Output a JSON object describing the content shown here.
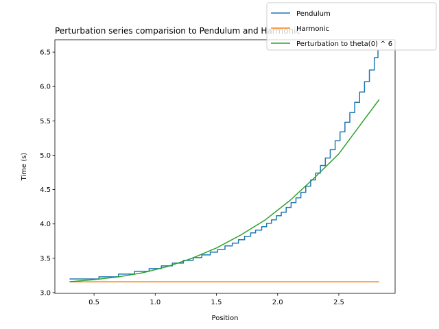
{
  "chart_data": {
    "type": "line",
    "title": "Perturbation series comparision to Pendulum and Harmonic",
    "xlabel": "Position",
    "ylabel": "Time (s)",
    "xlim": [
      0.18,
      2.96
    ],
    "ylim": [
      2.99,
      6.68
    ],
    "xticks": [
      0.5,
      1.0,
      1.5,
      2.0,
      2.5
    ],
    "xtick_labels": [
      "0.5",
      "1.0",
      "1.5",
      "2.0",
      "2.5"
    ],
    "yticks": [
      3.0,
      3.5,
      4.0,
      4.5,
      5.0,
      5.5,
      6.0,
      6.5
    ],
    "ytick_labels": [
      "3.0",
      "3.5",
      "4.0",
      "4.5",
      "5.0",
      "5.5",
      "6.0",
      "6.5"
    ],
    "grid": false,
    "legend_position": "top-right",
    "series": [
      {
        "name": "Pendulum",
        "color": "#1f77b4",
        "style": "step",
        "x": [
          0.3,
          0.54,
          0.7,
          0.83,
          0.95,
          1.05,
          1.14,
          1.23,
          1.31,
          1.38,
          1.45,
          1.51,
          1.57,
          1.63,
          1.68,
          1.73,
          1.78,
          1.82,
          1.87,
          1.91,
          1.95,
          1.99,
          2.03,
          2.07,
          2.11,
          2.15,
          2.19,
          2.23,
          2.27,
          2.31,
          2.35,
          2.39,
          2.43,
          2.47,
          2.51,
          2.55,
          2.59,
          2.63,
          2.67,
          2.71,
          2.75,
          2.79,
          2.82
        ],
        "y": [
          3.2,
          3.23,
          3.27,
          3.31,
          3.35,
          3.39,
          3.43,
          3.47,
          3.51,
          3.55,
          3.59,
          3.63,
          3.68,
          3.72,
          3.77,
          3.82,
          3.87,
          3.91,
          3.96,
          4.01,
          4.06,
          4.12,
          4.17,
          4.24,
          4.31,
          4.38,
          4.46,
          4.55,
          4.64,
          4.74,
          4.85,
          4.96,
          5.08,
          5.21,
          5.34,
          5.48,
          5.62,
          5.77,
          5.92,
          6.07,
          6.24,
          6.42,
          6.53
        ]
      },
      {
        "name": "Harmonic",
        "color": "#ff7f0e",
        "style": "line",
        "x": [
          0.3,
          2.83
        ],
        "y": [
          3.158,
          3.158
        ]
      },
      {
        "name": "Perturbation to theta(0) ^ 6",
        "color": "#2ca02c",
        "style": "line",
        "x": [
          0.3,
          0.5,
          0.7,
          0.9,
          1.1,
          1.3,
          1.5,
          1.7,
          1.9,
          2.1,
          2.3,
          2.5,
          2.7,
          2.83
        ],
        "y": [
          3.158,
          3.19,
          3.23,
          3.29,
          3.38,
          3.5,
          3.65,
          3.84,
          4.06,
          4.34,
          4.67,
          5.02,
          5.5,
          5.81
        ]
      }
    ]
  }
}
